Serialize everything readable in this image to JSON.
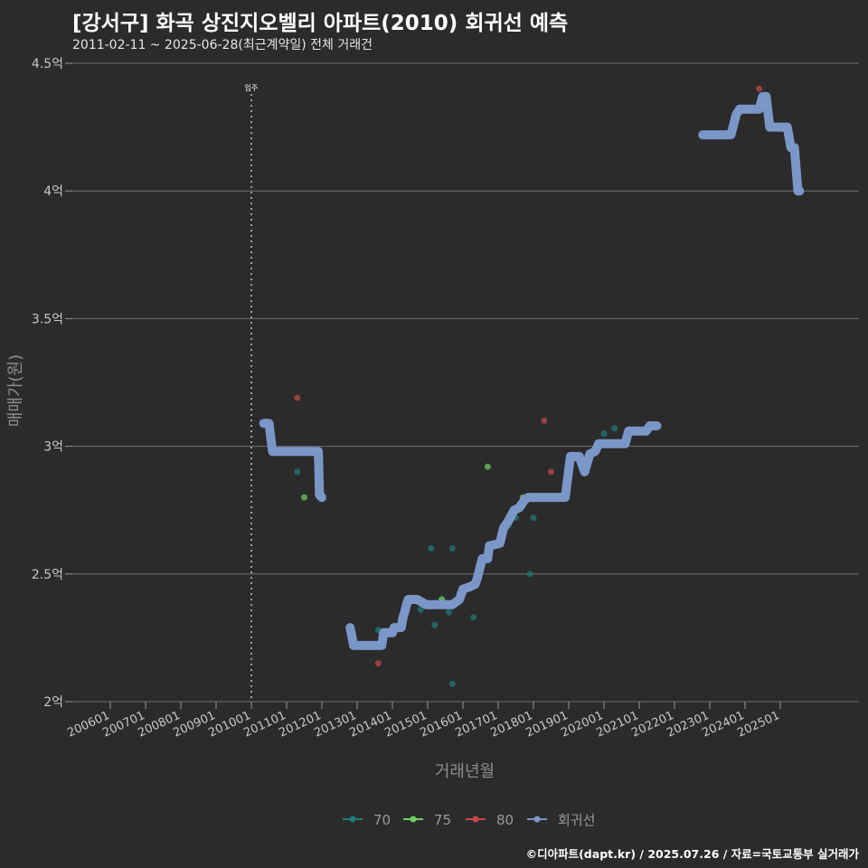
{
  "title": "[강서구] 화곡 상진지오벨리 아파트(2010) 회귀선 예측",
  "subtitle": "2011-02-11 ~ 2025-06-28(최근계약일) 전체 거래건",
  "footer": "©디아파트(dapt.kr) / 2025.07.26 / 자료=국토교통부 실거래가",
  "colors": {
    "background": "#2b2b2c",
    "grid": "#6f6f6f",
    "s70": "#1e7f7a",
    "s75": "#6fcf5f",
    "s80": "#c84848",
    "regression": "#7a97c8"
  },
  "chart_data": {
    "type": "scatter",
    "xlabel": "거래년월",
    "ylabel": "매매가(원)",
    "y_ticks": [
      {
        "value": 2.0,
        "label": "2억"
      },
      {
        "value": 2.5,
        "label": "2.5억"
      },
      {
        "value": 3.0,
        "label": "3억"
      },
      {
        "value": 3.5,
        "label": "3.5억"
      },
      {
        "value": 4.0,
        "label": "4억"
      },
      {
        "value": 4.5,
        "label": "4.5억"
      }
    ],
    "ylim": [
      2.0,
      4.5
    ],
    "x_ticks": [
      "200601",
      "200701",
      "200801",
      "200901",
      "201001",
      "201101",
      "201201",
      "201301",
      "201401",
      "201501",
      "201601",
      "201701",
      "201801",
      "201901",
      "202001",
      "202101",
      "202201",
      "202301",
      "202401",
      "202501"
    ],
    "annotation": {
      "x": 2010.0,
      "label": "입주"
    },
    "legend": [
      "70",
      "75",
      "80",
      "회귀선"
    ],
    "series": [
      {
        "name": "70",
        "points": [
          [
            2011.3,
            2.9
          ],
          [
            2013.6,
            2.28
          ],
          [
            2014.8,
            2.36
          ],
          [
            2015.1,
            2.6
          ],
          [
            2015.2,
            2.3
          ],
          [
            2015.4,
            2.4
          ],
          [
            2015.6,
            2.35
          ],
          [
            2015.7,
            2.6
          ],
          [
            2015.7,
            2.07
          ],
          [
            2016.3,
            2.33
          ],
          [
            2016.6,
            2.55
          ],
          [
            2017.3,
            2.69
          ],
          [
            2017.5,
            2.72
          ],
          [
            2018.0,
            2.72
          ],
          [
            2017.9,
            2.5
          ],
          [
            2019.5,
            2.9
          ],
          [
            2020.0,
            3.05
          ],
          [
            2020.3,
            3.07
          ]
        ]
      },
      {
        "name": "75",
        "points": [
          [
            2011.5,
            2.8
          ],
          [
            2016.7,
            2.92
          ],
          [
            2015.4,
            2.4
          ],
          [
            2017.7,
            2.8
          ]
        ]
      },
      {
        "name": "80",
        "points": [
          [
            2011.3,
            3.19
          ],
          [
            2013.6,
            2.15
          ],
          [
            2018.3,
            3.1
          ],
          [
            2018.5,
            2.9
          ],
          [
            2024.4,
            4.4
          ]
        ]
      }
    ],
    "regression_segments": [
      [
        [
          2010.35,
          3.09
        ],
        [
          2010.5,
          3.09
        ],
        [
          2010.6,
          2.98
        ],
        [
          2011.9,
          2.98
        ],
        [
          2011.93,
          2.81
        ],
        [
          2012.0,
          2.8
        ]
      ],
      [
        [
          2012.8,
          2.29
        ],
        [
          2012.9,
          2.22
        ],
        [
          2013.7,
          2.22
        ],
        [
          2013.75,
          2.27
        ],
        [
          2014.0,
          2.27
        ],
        [
          2014.05,
          2.29
        ],
        [
          2014.25,
          2.29
        ],
        [
          2014.3,
          2.33
        ],
        [
          2014.35,
          2.35
        ],
        [
          2014.4,
          2.38
        ],
        [
          2014.45,
          2.4
        ],
        [
          2014.7,
          2.4
        ],
        [
          2014.95,
          2.38
        ],
        [
          2015.7,
          2.38
        ],
        [
          2015.9,
          2.4
        ],
        [
          2016.0,
          2.44
        ],
        [
          2016.2,
          2.45
        ],
        [
          2016.35,
          2.46
        ],
        [
          2016.4,
          2.48
        ],
        [
          2016.55,
          2.56
        ],
        [
          2016.7,
          2.56
        ],
        [
          2016.75,
          2.61
        ],
        [
          2017.05,
          2.62
        ],
        [
          2017.15,
          2.68
        ],
        [
          2017.3,
          2.71
        ],
        [
          2017.45,
          2.75
        ],
        [
          2017.6,
          2.76
        ],
        [
          2017.75,
          2.79
        ],
        [
          2017.85,
          2.8
        ],
        [
          2018.9,
          2.8
        ],
        [
          2019.05,
          2.96
        ],
        [
          2019.3,
          2.96
        ],
        [
          2019.45,
          2.9
        ],
        [
          2019.6,
          2.97
        ],
        [
          2019.75,
          2.98
        ],
        [
          2019.85,
          3.01
        ],
        [
          2020.6,
          3.01
        ],
        [
          2020.7,
          3.06
        ],
        [
          2021.2,
          3.06
        ],
        [
          2021.3,
          3.08
        ],
        [
          2021.5,
          3.08
        ]
      ],
      [
        [
          2022.8,
          4.22
        ],
        [
          2023.6,
          4.22
        ],
        [
          2023.75,
          4.3
        ],
        [
          2023.85,
          4.32
        ],
        [
          2024.4,
          4.32
        ],
        [
          2024.5,
          4.37
        ],
        [
          2024.6,
          4.37
        ],
        [
          2024.7,
          4.25
        ],
        [
          2025.2,
          4.25
        ],
        [
          2025.3,
          4.17
        ],
        [
          2025.4,
          4.17
        ],
        [
          2025.5,
          4.0
        ],
        [
          2025.55,
          4.0
        ]
      ]
    ]
  }
}
